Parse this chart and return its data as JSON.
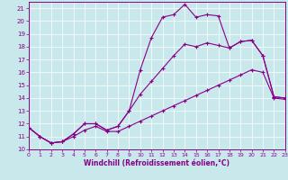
{
  "xlabel": "Windchill (Refroidissement éolien,°C)",
  "bg_color": "#c8e8ec",
  "line_color": "#880088",
  "xlim": [
    0,
    23
  ],
  "ylim": [
    10,
    21.5
  ],
  "xticks": [
    0,
    1,
    2,
    3,
    4,
    5,
    6,
    7,
    8,
    9,
    10,
    11,
    12,
    13,
    14,
    15,
    16,
    17,
    18,
    19,
    20,
    21,
    22,
    23
  ],
  "yticks": [
    10,
    11,
    12,
    13,
    14,
    15,
    16,
    17,
    18,
    19,
    20,
    21
  ],
  "line1_y": [
    11.7,
    11.0,
    10.5,
    10.6,
    11.2,
    12.0,
    12.0,
    11.5,
    11.8,
    13.0,
    16.2,
    18.7,
    20.3,
    20.5,
    21.3,
    20.3,
    20.5,
    20.4,
    17.9,
    18.4,
    18.5,
    17.3,
    14.1,
    14.0
  ],
  "line2_y": [
    11.7,
    11.0,
    10.5,
    10.6,
    11.2,
    12.0,
    12.0,
    11.5,
    11.8,
    13.0,
    14.3,
    15.3,
    16.3,
    17.3,
    18.2,
    18.0,
    18.3,
    18.1,
    17.9,
    18.4,
    18.5,
    17.3,
    14.1,
    14.0
  ],
  "line3_y": [
    11.7,
    11.0,
    10.5,
    10.6,
    11.0,
    11.5,
    11.8,
    11.4,
    11.4,
    11.8,
    12.2,
    12.6,
    13.0,
    13.4,
    13.8,
    14.2,
    14.6,
    15.0,
    15.4,
    15.8,
    16.2,
    16.0,
    14.0,
    13.9
  ]
}
